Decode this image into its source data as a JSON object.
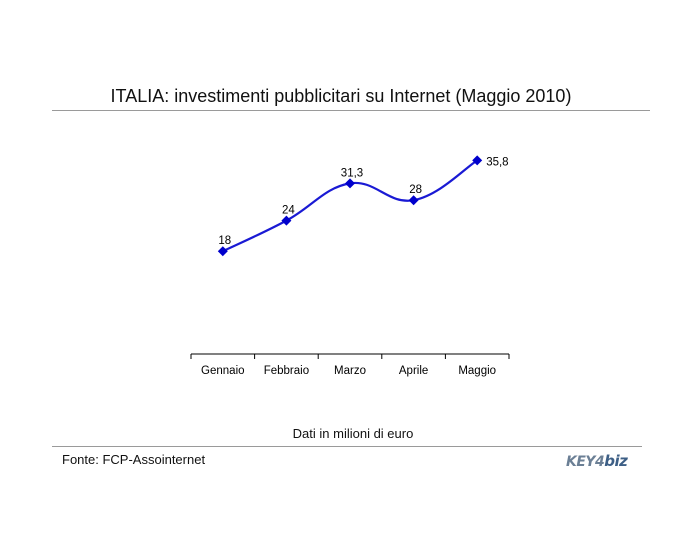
{
  "title": "ITALIA: investimenti pubblicitari su Internet (Maggio 2010)",
  "note": "Dati in milioni di euro",
  "source": "Fonte: FCP-Assointernet",
  "logo": {
    "part1": "KEY4",
    "part2": "biz"
  },
  "colors": {
    "line": "#1a1ad4",
    "marker": "#0000cc",
    "axis": "#000000"
  },
  "chart_data": {
    "type": "line",
    "title": "ITALIA: investimenti pubblicitari su Internet (Maggio 2010)",
    "categories": [
      "Gennaio",
      "Febbraio",
      "Marzo",
      "Aprile",
      "Maggio"
    ],
    "values": [
      18,
      24,
      31.3,
      28,
      35.8
    ],
    "data_labels": [
      "18",
      "24",
      "31,3",
      "28",
      "35,8"
    ],
    "ylabel": "",
    "xlabel": "",
    "ylim": [
      0,
      60
    ],
    "grid": false,
    "legend": "none",
    "smooth": true
  }
}
